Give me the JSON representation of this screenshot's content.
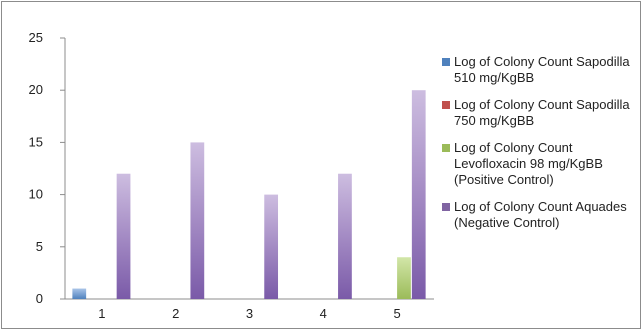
{
  "chart_data": {
    "type": "bar",
    "categories": [
      "1",
      "2",
      "3",
      "4",
      "5"
    ],
    "ylim": [
      0,
      25
    ],
    "yticks": [
      "0",
      "5",
      "10",
      "15",
      "20",
      "25"
    ],
    "grid": false,
    "legend_position": "right",
    "series": [
      {
        "name": "Log of Colony Count Sapodilla 510 mg/KgBB",
        "color": "#4f81bd",
        "values": [
          1,
          0,
          0,
          0,
          0
        ]
      },
      {
        "name": "Log of Colony Count Sapodilla 750 mg/KgBB",
        "color": "#c0504d",
        "values": [
          0,
          0,
          0,
          0,
          0
        ]
      },
      {
        "name": "Log of Colony Count Levofloxacin 98 mg/KgBB (Positive Control)",
        "color": "#9bbb59",
        "values": [
          0,
          0,
          0,
          0,
          4
        ]
      },
      {
        "name": "Log of Colony Count Aquades (Negative Control)",
        "color": "#8064a2",
        "values": [
          12,
          15,
          10,
          12,
          20
        ]
      }
    ]
  }
}
